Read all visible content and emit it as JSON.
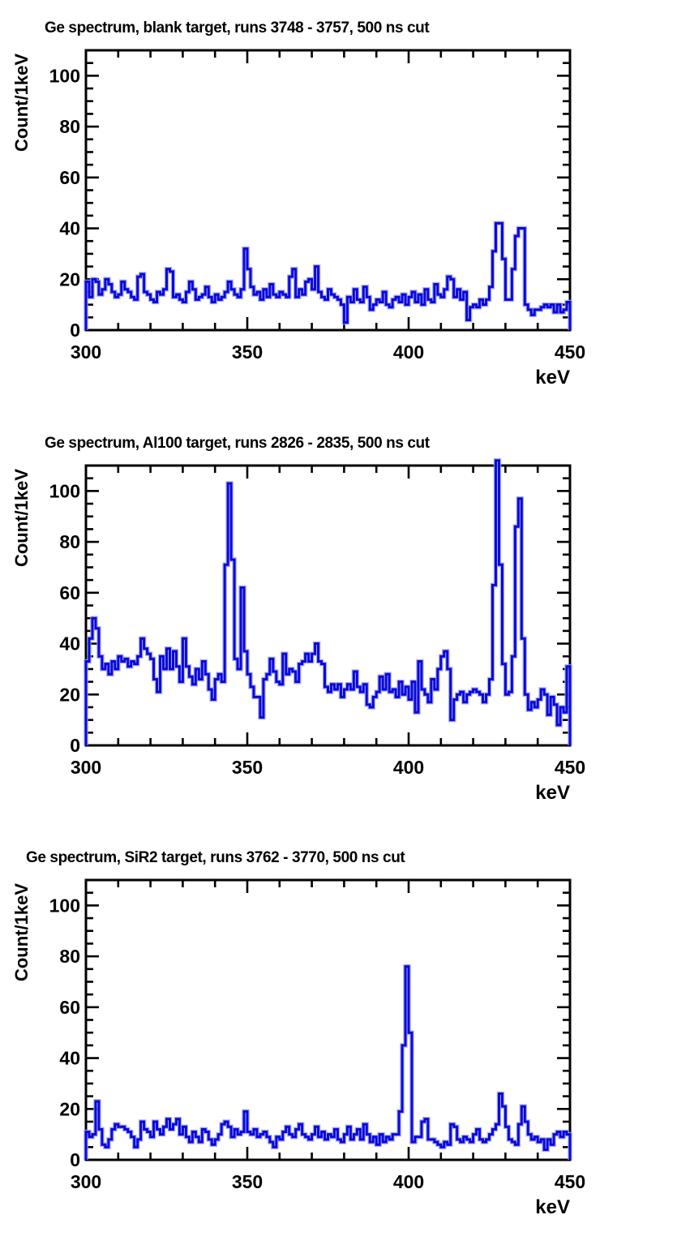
{
  "page": {
    "background_color": "#ffffff",
    "frame_color": "#000000",
    "histogram_color": "#0808dc",
    "histogram_halo_color": "#9f9ff0"
  },
  "chart_data": [
    {
      "type": "step-histogram",
      "title": "Ge spectrum, blank target, runs 3748 - 3757, 500 ns cut",
      "xlabel": "keV",
      "ylabel": "Count/1keV",
      "xlim": [
        300,
        450
      ],
      "ylim": [
        0,
        110
      ],
      "x_ticks": [
        300,
        350,
        400,
        450
      ],
      "y_ticks": [
        0,
        20,
        40,
        60,
        80,
        100
      ],
      "x_minor_step": 10,
      "y_minor_step": 5,
      "bin_width_kev": 1,
      "x_start": 300,
      "line_color": "#0808dc",
      "grid": false,
      "values": [
        19,
        13,
        20,
        19,
        14,
        16,
        20,
        18,
        15,
        13,
        14,
        19,
        16,
        15,
        13,
        12,
        21,
        22,
        15,
        14,
        12,
        11,
        15,
        14,
        16,
        24,
        23,
        13,
        14,
        12,
        11,
        15,
        19,
        16,
        12,
        13,
        14,
        17,
        13,
        11,
        14,
        12,
        13,
        15,
        19,
        16,
        14,
        13,
        16,
        32,
        24,
        17,
        14,
        15,
        12,
        16,
        13,
        18,
        14,
        13,
        15,
        14,
        13,
        21,
        24,
        13,
        16,
        14,
        19,
        20,
        16,
        25,
        15,
        13,
        12,
        16,
        14,
        13,
        12,
        10,
        3,
        13,
        11,
        16,
        12,
        11,
        17,
        13,
        8,
        10,
        12,
        11,
        15,
        10,
        9,
        12,
        13,
        11,
        14,
        10,
        13,
        15,
        11,
        14,
        10,
        16,
        12,
        11,
        18,
        14,
        13,
        16,
        21,
        20,
        13,
        16,
        12,
        15,
        4,
        9,
        10,
        9,
        12,
        10,
        12,
        17,
        31,
        42,
        42,
        28,
        12,
        12,
        24,
        37,
        40,
        40,
        10,
        8,
        6,
        8,
        8,
        9,
        10,
        9,
        10,
        7,
        10,
        7,
        8,
        11
      ]
    },
    {
      "type": "step-histogram",
      "title": "Ge spectrum, Al100 target, runs 2826 - 2835, 500 ns cut",
      "xlabel": "keV",
      "ylabel": "Count/1keV",
      "xlim": [
        300,
        450
      ],
      "ylim": [
        0,
        110
      ],
      "x_ticks": [
        300,
        350,
        400,
        450
      ],
      "y_ticks": [
        0,
        20,
        40,
        60,
        80,
        100
      ],
      "x_minor_step": 10,
      "y_minor_step": 5,
      "bin_width_kev": 1,
      "x_start": 300,
      "line_color": "#0808dc",
      "grid": false,
      "values": [
        33,
        42,
        50,
        46,
        35,
        30,
        32,
        28,
        33,
        30,
        35,
        33,
        34,
        31,
        33,
        32,
        35,
        42,
        38,
        36,
        34,
        26,
        21,
        35,
        30,
        38,
        30,
        37,
        31,
        25,
        42,
        31,
        27,
        24,
        30,
        26,
        33,
        28,
        22,
        18,
        26,
        28,
        25,
        71,
        103,
        73,
        34,
        30,
        62,
        37,
        28,
        23,
        19,
        19,
        11,
        26,
        28,
        34,
        29,
        25,
        24,
        36,
        28,
        30,
        29,
        25,
        32,
        33,
        36,
        33,
        36,
        40,
        33,
        32,
        23,
        21,
        24,
        22,
        24,
        19,
        22,
        24,
        22,
        29,
        23,
        21,
        24,
        16,
        15,
        19,
        21,
        27,
        22,
        28,
        21,
        22,
        19,
        25,
        20,
        23,
        18,
        25,
        13,
        33,
        22,
        20,
        17,
        26,
        22,
        30,
        35,
        37,
        30,
        10,
        18,
        20,
        21,
        17,
        20,
        21,
        22,
        21,
        20,
        17,
        20,
        26,
        63,
        112,
        71,
        32,
        20,
        21,
        35,
        86,
        97,
        42,
        20,
        14,
        17,
        15,
        18,
        22,
        20,
        12,
        19,
        16,
        8,
        15,
        13,
        31
      ]
    },
    {
      "type": "step-histogram",
      "title": "Ge spectrum, SiR2 target, runs 3762 - 3770, 500 ns cut",
      "xlabel": "keV",
      "ylabel": "Count/1keV",
      "xlim": [
        300,
        450
      ],
      "ylim": [
        0,
        110
      ],
      "x_ticks": [
        300,
        350,
        400,
        450
      ],
      "y_ticks": [
        0,
        20,
        40,
        60,
        80,
        100
      ],
      "x_minor_step": 10,
      "y_minor_step": 5,
      "bin_width_kev": 1,
      "x_start": 300,
      "line_color": "#0808dc",
      "grid": false,
      "values": [
        11,
        9,
        10,
        23,
        12,
        6,
        5,
        8,
        12,
        14,
        13,
        13,
        12,
        11,
        9,
        5,
        8,
        15,
        12,
        11,
        9,
        15,
        12,
        10,
        13,
        16,
        12,
        14,
        16,
        10,
        13,
        9,
        7,
        11,
        9,
        7,
        12,
        11,
        8,
        6,
        8,
        10,
        14,
        15,
        13,
        9,
        12,
        10,
        11,
        19,
        11,
        10,
        12,
        9,
        10,
        11,
        9,
        7,
        5,
        9,
        8,
        11,
        13,
        10,
        9,
        12,
        14,
        10,
        9,
        8,
        10,
        13,
        9,
        11,
        8,
        10,
        9,
        12,
        8,
        7,
        10,
        13,
        8,
        10,
        12,
        8,
        14,
        10,
        7,
        9,
        6,
        10,
        7,
        9,
        8,
        10,
        10,
        19,
        45,
        76,
        50,
        7,
        9,
        9,
        15,
        16,
        8,
        8,
        7,
        6,
        5,
        7,
        6,
        14,
        13,
        8,
        7,
        9,
        8,
        7,
        10,
        12,
        8,
        7,
        8,
        10,
        12,
        14,
        26,
        21,
        13,
        8,
        7,
        6,
        14,
        21,
        15,
        10,
        8,
        9,
        7,
        8,
        4,
        8,
        6,
        10,
        11,
        9,
        11,
        10
      ]
    }
  ]
}
